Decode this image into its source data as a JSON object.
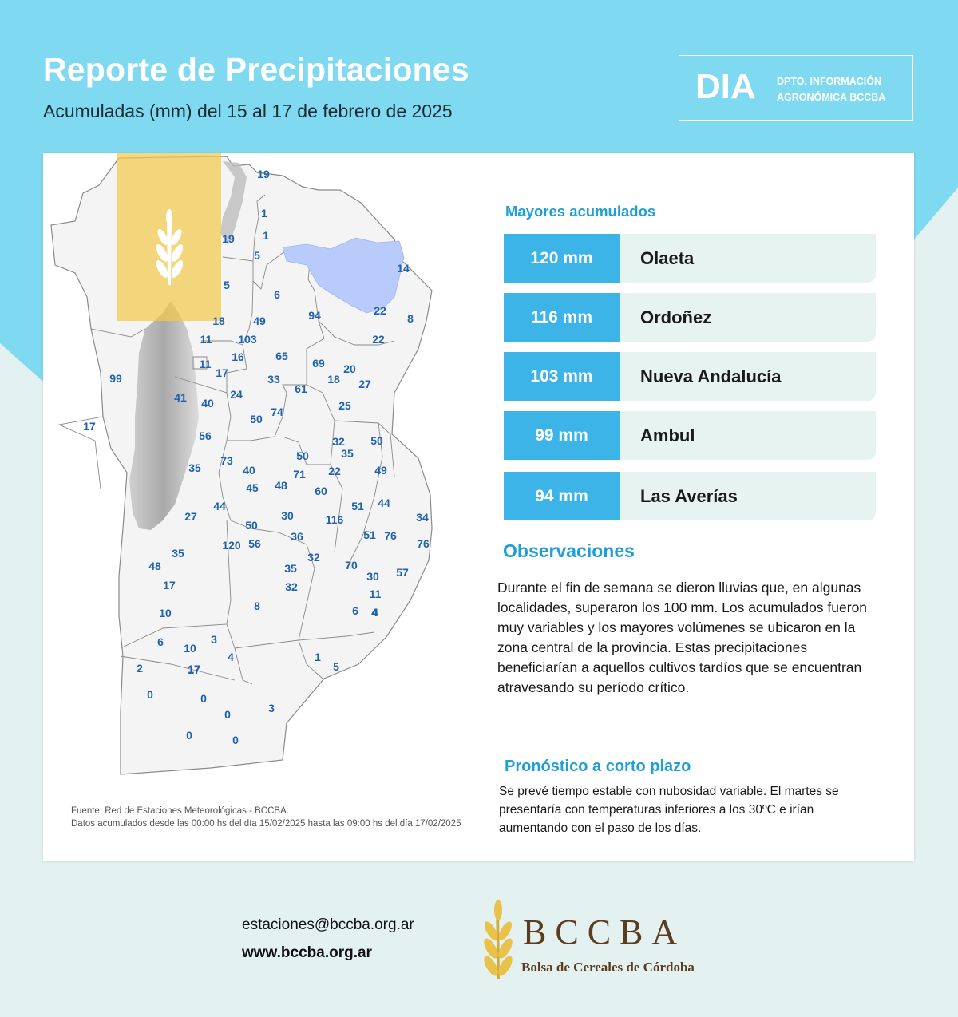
{
  "colors": {
    "accent": "#3db4e8",
    "header_bg": "#7fd9f0",
    "lake": "#b8cbfa",
    "label": "#1f62ad",
    "brand": "#5b3c1e",
    "wheat": "#e8c24a"
  },
  "header": {
    "title": "Reporte de Precipitaciones",
    "subtitle": "Acumuladas (mm) del 15 al 17 de febrero de 2025",
    "badge_big": "DIA",
    "badge_line1": "DPTO. INFORMACIÓN",
    "badge_line2": "AGRONÓMICA BCCBA"
  },
  "map": {
    "values": [
      "19",
      "1",
      "19",
      "1",
      "5",
      "5",
      "14",
      "6",
      "94",
      "22",
      "8",
      "18",
      "49",
      "11",
      "103",
      "22",
      "65",
      "16",
      "11",
      "17",
      "69",
      "20",
      "99",
      "33",
      "18",
      "27",
      "61",
      "41",
      "40",
      "24",
      "25",
      "17",
      "74",
      "50",
      "56",
      "32",
      "50",
      "35",
      "73",
      "50",
      "71",
      "22",
      "49",
      "44",
      "35",
      "40",
      "45",
      "48",
      "60",
      "51",
      "44",
      "27",
      "30",
      "116",
      "34",
      "50",
      "76",
      "51",
      "76",
      "56",
      "120",
      "36",
      "35",
      "32",
      "70",
      "30",
      "57",
      "48",
      "35",
      "32",
      "17",
      "11",
      "8",
      "10",
      "6",
      "4",
      "6",
      "4",
      "3",
      "10",
      "17",
      "4",
      "1",
      "5",
      "2",
      "17",
      "0",
      "0",
      "0",
      "3",
      "0",
      "0"
    ]
  },
  "source": {
    "line1": "Fuente: Red de Estaciones Meteorológicas - BCCBA.",
    "line2": "Datos acumulados desde las 00:00 hs del día 15/02/2025 hasta las 09:00 hs del día 17/02/2025"
  },
  "ranking": {
    "heading": "Mayores acumulados",
    "items": [
      {
        "mm": "120 mm",
        "place": "Olaeta"
      },
      {
        "mm": "116 mm",
        "place": "Ordoñez"
      },
      {
        "mm": "103 mm",
        "place": "Nueva Andalucía"
      },
      {
        "mm": "99 mm",
        "place": "Ambul"
      },
      {
        "mm": "94 mm",
        "place": "Las Averías"
      }
    ]
  },
  "observations": {
    "heading": "Observaciones",
    "text": "Durante el fin de semana se dieron lluvias que, en algunas localidades, superaron los 100 mm. Los acumulados fueron muy variables y los mayores volúmenes se ubicaron en la zona central de la provincia. Estas precipitaciones beneficiarían a aquellos cultivos tardíos que se encuentran atravesando su período crítico."
  },
  "forecast": {
    "heading": "Pronóstico a corto plazo",
    "text": "Se prevé tiempo estable con nubosidad variable. El martes se presentaría con temperaturas inferiores a los 30ºC e irían aumentando con el paso de los días."
  },
  "contact": {
    "email": "estaciones@bccba.org.ar",
    "web": "www.bccba.org.ar"
  },
  "logo": {
    "name": "BCCBA",
    "full": "Bolsa de Cereales de Córdoba"
  }
}
